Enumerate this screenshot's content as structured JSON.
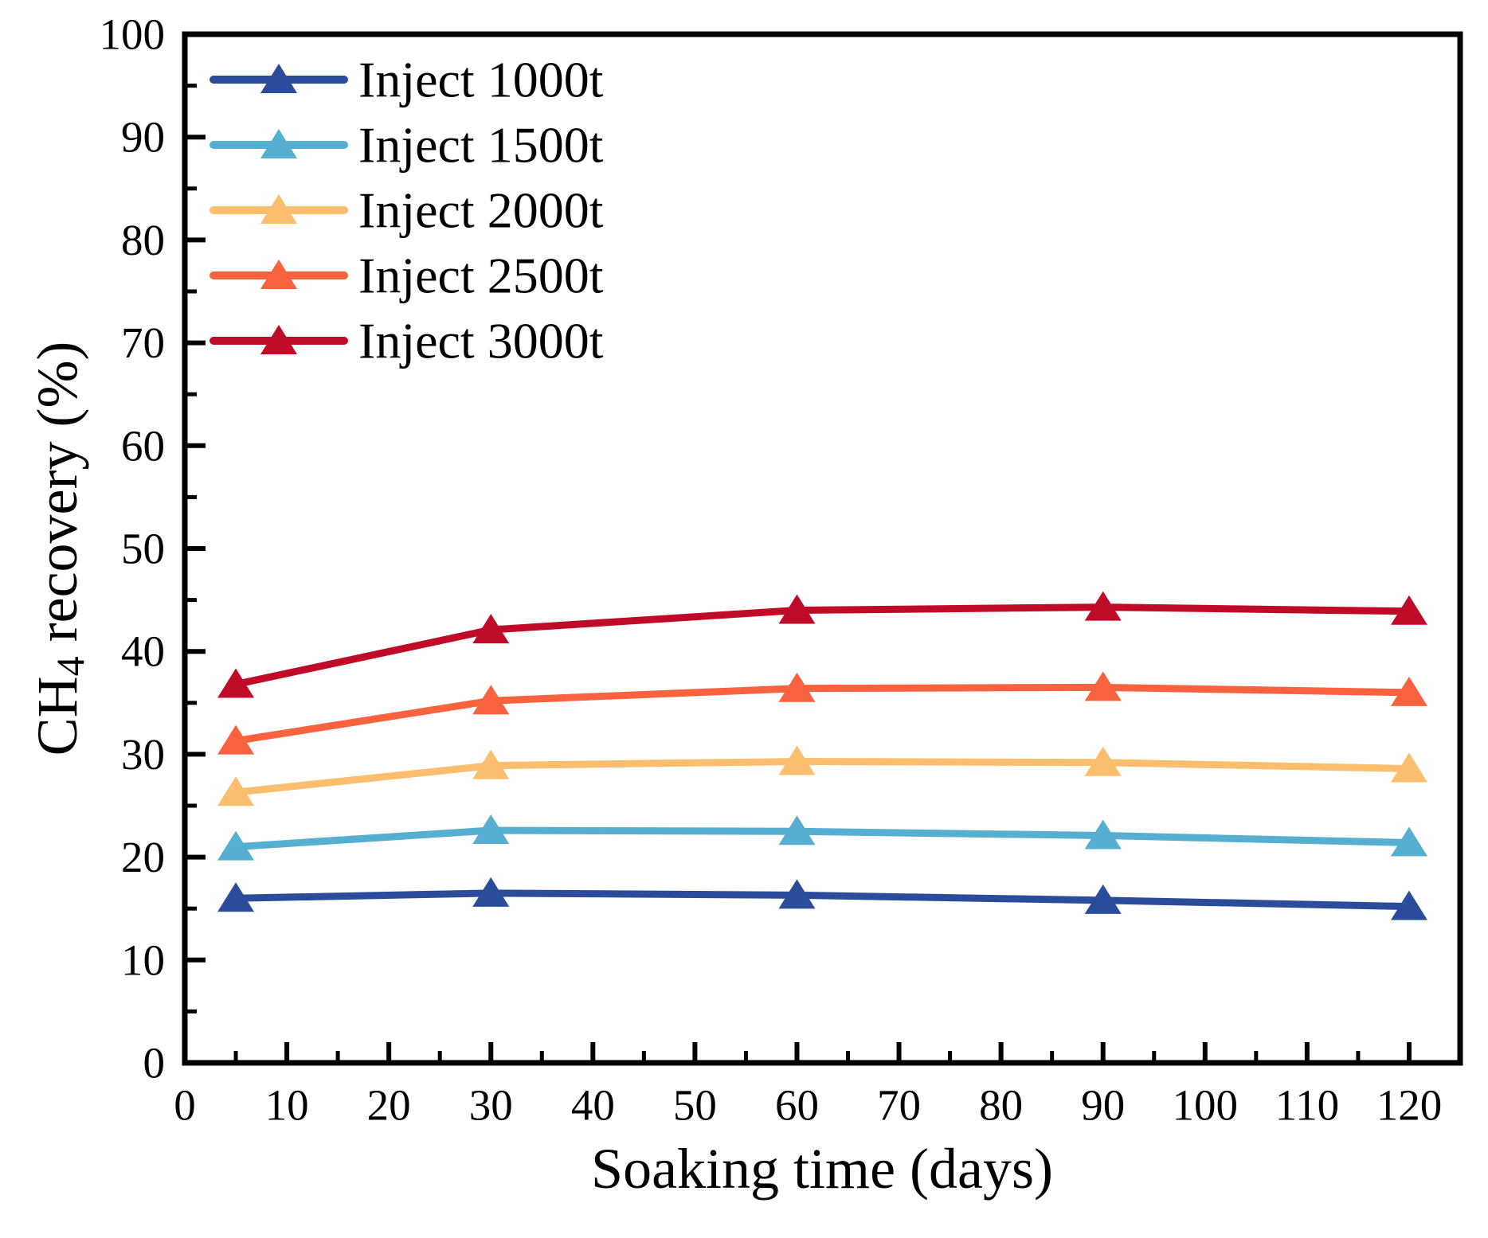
{
  "chart_data": {
    "type": "line",
    "title": "",
    "xlabel": "Soaking time (days)",
    "ylabel": "CH4 recovery (%)",
    "ylabel_rich": {
      "prefix": "CH",
      "subscript": "4",
      "suffix": " recovery (%)"
    },
    "x": [
      5,
      30,
      60,
      90,
      120
    ],
    "series": [
      {
        "name": "Inject 1000t",
        "color": "#2B4B9B",
        "values": [
          16.0,
          16.5,
          16.3,
          15.8,
          15.2
        ]
      },
      {
        "name": "Inject 1500t",
        "color": "#56AED1",
        "values": [
          21.0,
          22.6,
          22.5,
          22.1,
          21.4
        ]
      },
      {
        "name": "Inject 2000t",
        "color": "#FBBE6E",
        "values": [
          26.3,
          28.9,
          29.3,
          29.2,
          28.6
        ]
      },
      {
        "name": "Inject 2500t",
        "color": "#F9623F",
        "values": [
          31.3,
          35.2,
          36.4,
          36.5,
          36.0
        ]
      },
      {
        "name": "Inject 3000t",
        "color": "#C00B28",
        "values": [
          36.8,
          42.1,
          44.0,
          44.3,
          43.9
        ]
      }
    ],
    "xlim": [
      0,
      125
    ],
    "ylim": [
      0,
      100
    ],
    "xticks": [
      0,
      10,
      20,
      30,
      40,
      50,
      60,
      70,
      80,
      90,
      100,
      110,
      120
    ],
    "yticks": [
      0,
      10,
      20,
      30,
      40,
      50,
      60,
      70,
      80,
      90,
      100
    ],
    "minor_tick_step_x": 5,
    "minor_tick_step_y": 5,
    "marker": "triangle-up",
    "grid": false,
    "legend": {
      "position": "top-left",
      "frame": false,
      "items": [
        "Inject 1000t",
        "Inject 1500t",
        "Inject 2000t",
        "Inject 2500t",
        "Inject 3000t"
      ]
    },
    "axis_color": "#000000",
    "background_color": "#FFFFFF"
  }
}
